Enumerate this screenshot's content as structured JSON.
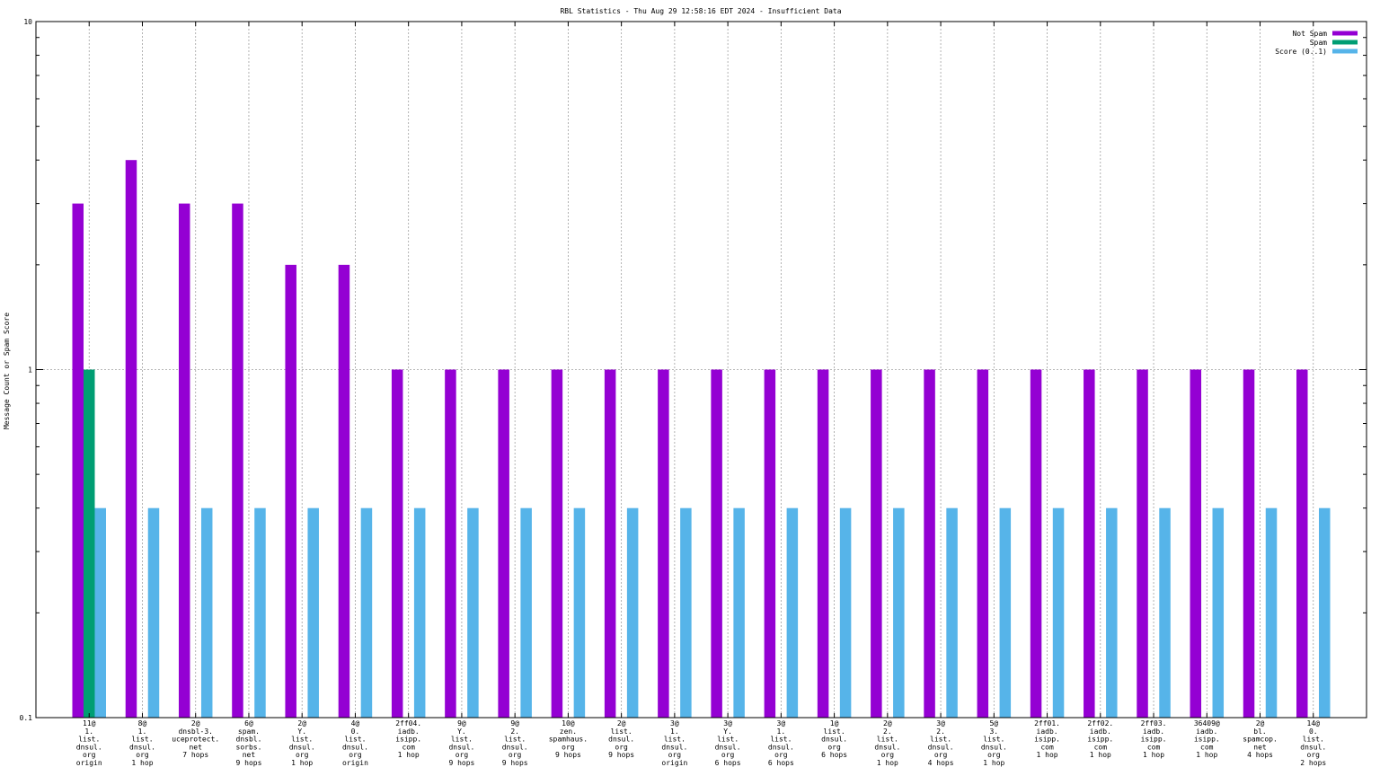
{
  "chart_data": {
    "type": "bar",
    "title": "RBL Statistics - Thu Aug 29 12:58:16 EDT 2024 - Insufficient Data",
    "xlabel": "",
    "ylabel": "Message Count or Spam Score",
    "yscale": "log",
    "ylim": [
      0.1,
      10
    ],
    "yticks": [
      "0.1",
      "1",
      "10"
    ],
    "grid": true,
    "legend_position": "top-right",
    "categories": [
      [
        "11@",
        "1.",
        "list.",
        "dnsul.",
        "org",
        "origin"
      ],
      [
        "8@",
        "1.",
        "list.",
        "dnsul.",
        "org",
        "1 hop"
      ],
      [
        "2@",
        "dnsbl-3.",
        "uceprotect.",
        "net",
        "7 hops"
      ],
      [
        "6@",
        "spam.",
        "dnsbl.",
        "sorbs.",
        "net",
        "9 hops"
      ],
      [
        "2@",
        "Y.",
        "list.",
        "dnsul.",
        "org",
        "1 hop"
      ],
      [
        "4@",
        "0.",
        "list.",
        "dnsul.",
        "org",
        "origin"
      ],
      [
        "2ff04.",
        "iadb.",
        "isipp.",
        "com",
        "1 hop"
      ],
      [
        "9@",
        "Y.",
        "list.",
        "dnsul.",
        "org",
        "9 hops"
      ],
      [
        "9@",
        "2.",
        "list.",
        "dnsul.",
        "org",
        "9 hops"
      ],
      [
        "10@",
        "zen.",
        "spamhaus.",
        "org",
        "9 hops"
      ],
      [
        "2@",
        "list.",
        "dnsul.",
        "org",
        "9 hops"
      ],
      [
        "3@",
        "1.",
        "list.",
        "dnsul.",
        "org",
        "origin"
      ],
      [
        "3@",
        "Y.",
        "list.",
        "dnsul.",
        "org",
        "6 hops"
      ],
      [
        "3@",
        "1.",
        "list.",
        "dnsul.",
        "org",
        "6 hops"
      ],
      [
        "1@",
        "list.",
        "dnsul.",
        "org",
        "6 hops"
      ],
      [
        "2@",
        "2.",
        "list.",
        "dnsul.",
        "org",
        "1 hop"
      ],
      [
        "3@",
        "2.",
        "list.",
        "dnsul.",
        "org",
        "4 hops"
      ],
      [
        "5@",
        "3.",
        "list.",
        "dnsul.",
        "org",
        "1 hop"
      ],
      [
        "2ff01.",
        "iadb.",
        "isipp.",
        "com",
        "1 hop"
      ],
      [
        "2ff02.",
        "iadb.",
        "isipp.",
        "com",
        "1 hop"
      ],
      [
        "2ff03.",
        "iadb.",
        "isipp.",
        "com",
        "1 hop"
      ],
      [
        "36409@",
        "iadb.",
        "isipp.",
        "com",
        "1 hop"
      ],
      [
        "2@",
        "bl.",
        "spamcop.",
        "net",
        "4 hops"
      ],
      [
        "14@",
        "0.",
        "list.",
        "dnsul.",
        "org",
        "2 hops"
      ]
    ],
    "series": [
      {
        "name": "Not Spam",
        "color": "#9400d3",
        "values": [
          3,
          4,
          3,
          3,
          2,
          2,
          1,
          1,
          1,
          1,
          1,
          1,
          1,
          1,
          1,
          1,
          1,
          1,
          1,
          1,
          1,
          1,
          1,
          1
        ]
      },
      {
        "name": "Spam",
        "color": "#009e73",
        "values": [
          1,
          0,
          0,
          0,
          0,
          0,
          0,
          0,
          0,
          0,
          0,
          0,
          0,
          0,
          0,
          0,
          0,
          0,
          0,
          0,
          0,
          0,
          0,
          0
        ]
      },
      {
        "name": "Score (0..1)",
        "color": "#56b4e9",
        "values": [
          0.4,
          0.4,
          0.4,
          0.4,
          0.4,
          0.4,
          0.4,
          0.4,
          0.4,
          0.4,
          0.4,
          0.4,
          0.4,
          0.4,
          0.4,
          0.4,
          0.4,
          0.4,
          0.4,
          0.4,
          0.4,
          0.4,
          0.4,
          0.4
        ]
      }
    ]
  }
}
